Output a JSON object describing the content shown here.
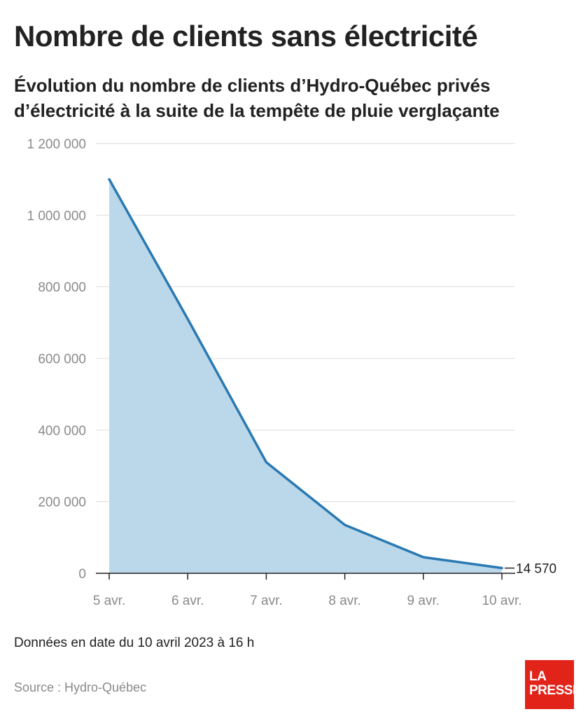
{
  "header": {
    "title": "Nombre de clients sans électricité",
    "subtitle": "Évolution du nombre de clients d’Hydro-Québec privés d’électricité à la suite de la tempête de pluie verglaçante"
  },
  "chart_data": {
    "type": "area",
    "categories": [
      "5 avr.",
      "6 avr.",
      "7 avr.",
      "8 avr.",
      "9 avr.",
      "10 avr."
    ],
    "series": [
      {
        "values": [
          1100000,
          710000,
          310000,
          135000,
          45000,
          14570
        ]
      }
    ],
    "ylim": [
      0,
      1200000
    ],
    "yticks": [
      0,
      200000,
      400000,
      600000,
      800000,
      1000000,
      1200000
    ],
    "ytick_labels": [
      "0",
      "200 000",
      "400 000",
      "600 000",
      "800 000",
      "1 000 000",
      "1 200 000"
    ],
    "end_label": "14 570",
    "grid": true,
    "line_color": "#2979b3",
    "fill_color": "#bbd8ea"
  },
  "footer": {
    "note": "Données en date du 10 avril 2023 à 16 h",
    "source": "Source : Hydro-Québec",
    "logo_line1": "LA",
    "logo_line2": "PRESSE"
  }
}
